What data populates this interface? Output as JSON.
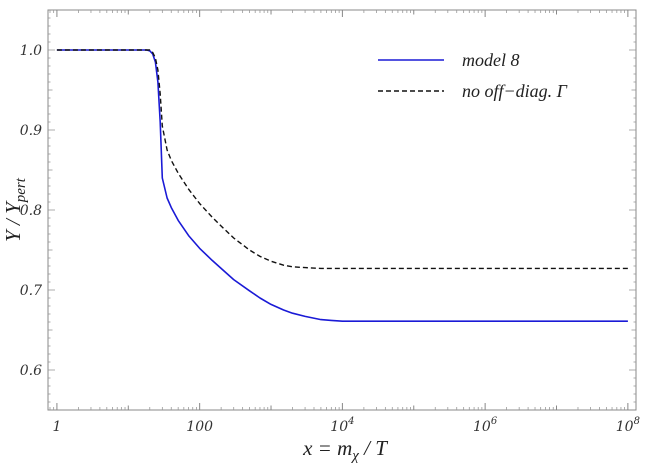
{
  "chart_data": {
    "type": "line",
    "title": "",
    "x_scale": "log",
    "xlim": [
      0.75,
      130000000
    ],
    "ylim": [
      0.55,
      1.05
    ],
    "x_ticks": [
      {
        "value": 1,
        "label": "1"
      },
      {
        "value": 100,
        "label": "100"
      },
      {
        "value": 10000,
        "label": "10",
        "exp": "4"
      },
      {
        "value": 1000000,
        "label": "10",
        "exp": "6"
      },
      {
        "value": 100000000,
        "label": "10",
        "exp": "8"
      }
    ],
    "y_ticks": [
      {
        "value": 0.6,
        "label": "0.6"
      },
      {
        "value": 0.7,
        "label": "0.7"
      },
      {
        "value": 0.8,
        "label": "0.8"
      },
      {
        "value": 0.9,
        "label": "0.9"
      },
      {
        "value": 1.0,
        "label": "1.0"
      }
    ],
    "xlabel": {
      "pre": "x = m",
      "sub": "χ",
      "post": " / T"
    },
    "ylabel": {
      "pre": "Y / Y",
      "sub": "pert"
    },
    "legend_position": "top-right",
    "series": [
      {
        "name": "model 8",
        "color": "#1a1ad6",
        "dash": "solid",
        "x": [
          1,
          5,
          10,
          15,
          18,
          20,
          22,
          24,
          26,
          28,
          30,
          35,
          40,
          50,
          70,
          100,
          150,
          200,
          300,
          500,
          700,
          1000,
          1500,
          2000,
          3000,
          5000,
          7000,
          10000,
          20000,
          100000,
          1000000,
          10000000,
          100000000
        ],
        "y": [
          1.0,
          1.0,
          1.0,
          1.0,
          1.0,
          0.999,
          0.995,
          0.985,
          0.96,
          0.91,
          0.84,
          0.815,
          0.803,
          0.787,
          0.768,
          0.752,
          0.737,
          0.727,
          0.713,
          0.699,
          0.69,
          0.682,
          0.675,
          0.671,
          0.667,
          0.663,
          0.662,
          0.661,
          0.661,
          0.661,
          0.661,
          0.661,
          0.661
        ]
      },
      {
        "name": "no off−diag. Γ",
        "color": "#111111",
        "dash": "dashed",
        "x": [
          1,
          5,
          10,
          15,
          18,
          20,
          22,
          24,
          26,
          28,
          30,
          35,
          40,
          50,
          70,
          100,
          150,
          200,
          300,
          500,
          700,
          1000,
          1500,
          2000,
          3000,
          5000,
          7000,
          10000,
          20000,
          100000,
          1000000,
          10000000,
          100000000
        ],
        "y": [
          1.0,
          1.0,
          1.0,
          1.0,
          1.0,
          1.0,
          0.997,
          0.99,
          0.975,
          0.945,
          0.905,
          0.875,
          0.862,
          0.846,
          0.826,
          0.808,
          0.791,
          0.78,
          0.765,
          0.75,
          0.742,
          0.736,
          0.731,
          0.729,
          0.728,
          0.727,
          0.727,
          0.727,
          0.727,
          0.727,
          0.727,
          0.727,
          0.727
        ]
      }
    ]
  }
}
